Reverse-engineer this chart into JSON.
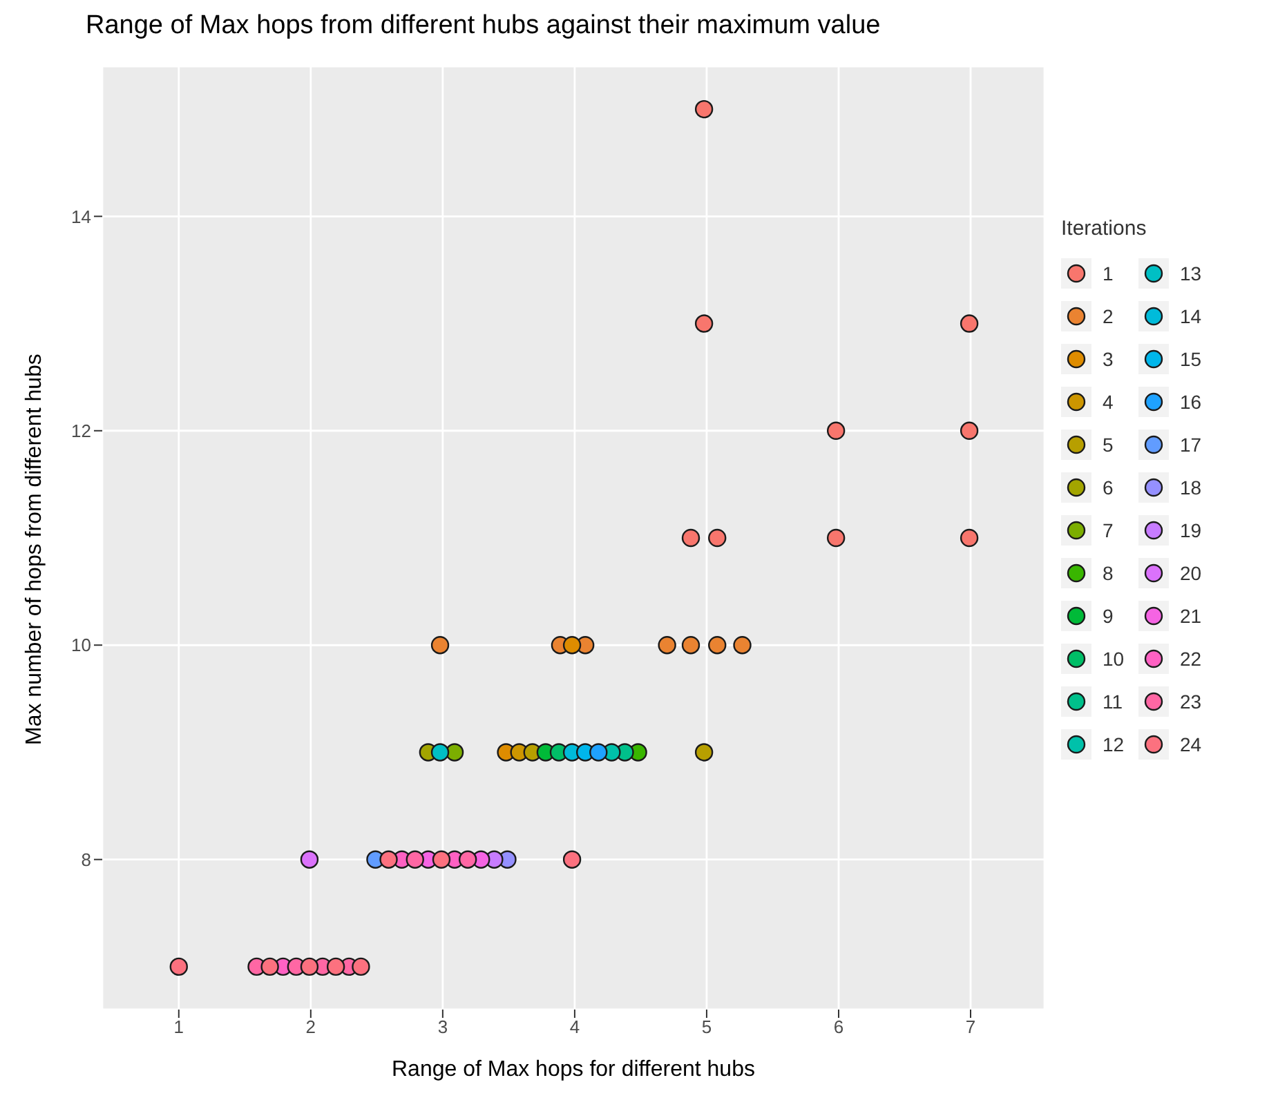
{
  "chart_data": {
    "type": "scatter",
    "title": "Range of Max hops from different hubs against their maximum value",
    "xlabel": "Range of Max hops for different hubs",
    "ylabel": "Max number of hops from different hubs",
    "legend_title": "Iterations",
    "legend": "right",
    "grid": true,
    "marker": "circle",
    "xlim": [
      0.42,
      7.56
    ],
    "xticks": [
      1,
      2,
      3,
      4,
      5,
      6,
      7
    ],
    "ylim": [
      6.6,
      15.4
    ],
    "yticks": [
      8,
      10,
      12,
      14
    ],
    "series": [
      {
        "name": "1",
        "color": "#F8766D",
        "x": [
          4.98,
          4.98,
          6.99,
          5.98,
          6.99,
          4.88,
          5.08,
          5.98,
          6.99
        ],
        "values": [
          15,
          13,
          13,
          12,
          12,
          11,
          11,
          11,
          11
        ]
      },
      {
        "name": "2",
        "color": "#EA8331",
        "x": [
          2.98,
          3.89,
          4.08,
          4.7,
          4.88,
          5.08,
          5.27
        ],
        "values": [
          10,
          10,
          10,
          10,
          10,
          10,
          10
        ]
      },
      {
        "name": "3",
        "color": "#DE8C00",
        "x": [
          3.98,
          3.48
        ],
        "values": [
          10,
          9
        ]
      },
      {
        "name": "4",
        "color": "#CD9600",
        "x": [
          3.58
        ],
        "values": [
          9
        ]
      },
      {
        "name": "5",
        "color": "#B79F00",
        "x": [
          3.68,
          4.98
        ],
        "values": [
          9,
          9
        ]
      },
      {
        "name": "6",
        "color": "#A3A500",
        "x": [
          2.89
        ],
        "values": [
          9
        ]
      },
      {
        "name": "7",
        "color": "#7CAE00",
        "x": [
          3.09
        ],
        "values": [
          9
        ]
      },
      {
        "name": "8",
        "color": "#39B600",
        "x": [
          4.48
        ],
        "values": [
          9
        ]
      },
      {
        "name": "9",
        "color": "#00BA38",
        "x": [
          3.78
        ],
        "values": [
          9
        ]
      },
      {
        "name": "10",
        "color": "#00BE67",
        "x": [
          3.88
        ],
        "values": [
          9
        ]
      },
      {
        "name": "11",
        "color": "#00C08B",
        "x": [
          4.38
        ],
        "values": [
          9
        ]
      },
      {
        "name": "12",
        "color": "#00C1AA",
        "x": [
          4.28
        ],
        "values": [
          9
        ]
      },
      {
        "name": "13",
        "color": "#00BFC4",
        "x": [
          2.98
        ],
        "values": [
          9
        ]
      },
      {
        "name": "14",
        "color": "#00BBDA",
        "x": [
          3.98
        ],
        "values": [
          9
        ]
      },
      {
        "name": "15",
        "color": "#00B6EB",
        "x": [
          4.08
        ],
        "values": [
          9
        ]
      },
      {
        "name": "16",
        "color": "#1FA2FF",
        "x": [
          4.18
        ],
        "values": [
          9
        ]
      },
      {
        "name": "17",
        "color": "#619CFF",
        "x": [
          2.49
        ],
        "values": [
          8
        ]
      },
      {
        "name": "18",
        "color": "#9590FF",
        "x": [
          3.49
        ],
        "values": [
          8
        ]
      },
      {
        "name": "19",
        "color": "#C77CFF",
        "x": [
          3.39
        ],
        "values": [
          8
        ]
      },
      {
        "name": "20",
        "color": "#DB72FB",
        "x": [
          1.99
        ],
        "values": [
          8
        ]
      },
      {
        "name": "21",
        "color": "#F564E3",
        "x": [
          2.89,
          3.29
        ],
        "values": [
          8,
          8
        ]
      },
      {
        "name": "22",
        "color": "#FF61C3",
        "x": [
          2.69,
          3.09,
          1.79
        ],
        "values": [
          8,
          8,
          7
        ]
      },
      {
        "name": "23",
        "color": "#FF67A4",
        "x": [
          2.79,
          3.19,
          1.59,
          1.89,
          2.09,
          2.29
        ],
        "values": [
          8,
          8,
          7,
          7,
          7,
          7
        ]
      },
      {
        "name": "24",
        "color": "#FC717F",
        "x": [
          2.59,
          2.99,
          3.98,
          1.0,
          1.69,
          1.99,
          2.19,
          2.38
        ],
        "values": [
          8,
          8,
          8,
          7,
          7,
          7,
          7,
          7
        ]
      }
    ]
  }
}
